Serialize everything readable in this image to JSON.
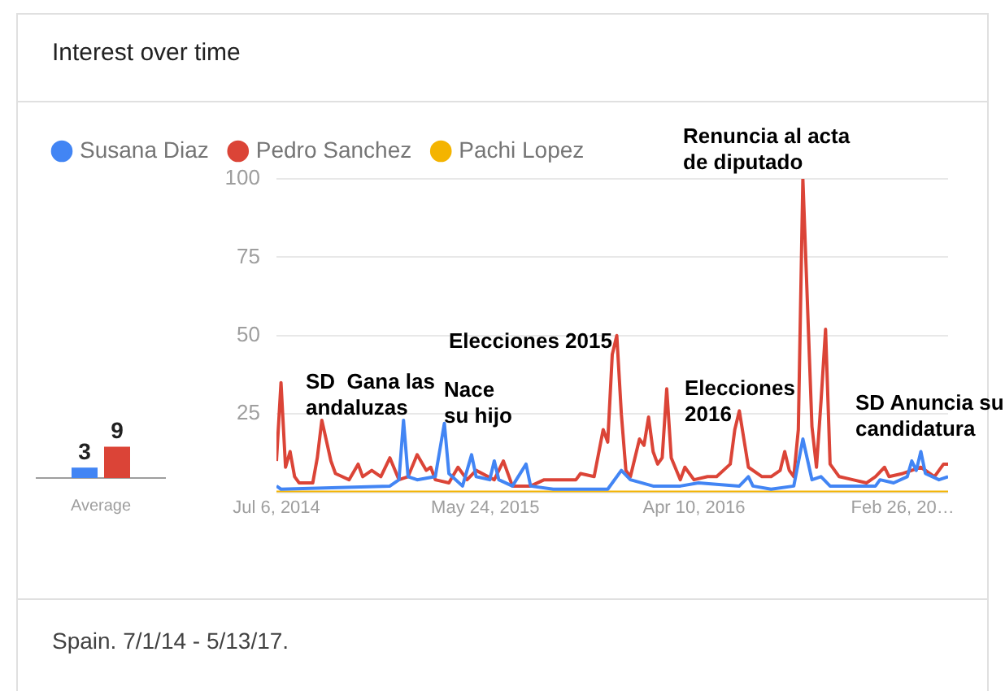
{
  "chart_data": [
    {
      "type": "bar",
      "categories": [
        "Average"
      ],
      "data_labels": true,
      "legend": false,
      "series": [
        {
          "color": "#4285f4",
          "values": [
            3
          ]
        },
        {
          "color": "#db4437",
          "values": [
            9
          ]
        }
      ]
    },
    {
      "type": "line",
      "title": "Interest over time",
      "legend": "top left",
      "grid": "y",
      "marker": "none",
      "xlim": [
        "2014-07-06",
        "2017-05-07"
      ],
      "xticks": [
        {
          "value": "2014-07-06",
          "label": "Jul 6, 2014"
        },
        {
          "value": "2015-05-24",
          "label": "May 24, 2015"
        },
        {
          "value": "2016-04-10",
          "label": "Apr 10, 2016"
        },
        {
          "value": "2017-02-26",
          "label": "Feb 26, 20…"
        }
      ],
      "ylim": [
        0,
        100
      ],
      "yticks": [
        {
          "value": 0,
          "label": null
        },
        25,
        50,
        75,
        100
      ],
      "series": [
        {
          "name": "Susana Diaz",
          "color": "#4285f4",
          "x": [
            "2014-07-06",
            "2014-07-13",
            "2014-12-28",
            "2015-01-11",
            "2015-01-18",
            "2015-01-25",
            "2015-02-08",
            "2015-03-08",
            "2015-03-22",
            "2015-03-29",
            "2015-04-19",
            "2015-05-03",
            "2015-05-10",
            "2015-05-31",
            "2015-06-07",
            "2015-06-14",
            "2015-07-05",
            "2015-07-26",
            "2015-08-02",
            "2015-09-06",
            "2015-11-29",
            "2015-12-20",
            "2016-01-03",
            "2016-02-07",
            "2016-03-20",
            "2016-04-17",
            "2016-06-19",
            "2016-07-03",
            "2016-07-10",
            "2016-08-07",
            "2016-09-11",
            "2016-09-25",
            "2016-10-09",
            "2016-10-23",
            "2016-11-06",
            "2016-12-11",
            "2017-01-15",
            "2017-01-22",
            "2017-02-12",
            "2017-03-05",
            "2017-03-12",
            "2017-03-19",
            "2017-03-26",
            "2017-04-02",
            "2017-04-23",
            "2017-05-07"
          ],
          "values": [
            2,
            1,
            2,
            4,
            23,
            5,
            4,
            5,
            22,
            6,
            2,
            12,
            5,
            4,
            10,
            4,
            2,
            9,
            2,
            1,
            1,
            7,
            4,
            2,
            2,
            3,
            2,
            5,
            2,
            1,
            2,
            17,
            4,
            5,
            2,
            2,
            2,
            4,
            3,
            5,
            10,
            7,
            13,
            6,
            4,
            5
          ]
        },
        {
          "name": "Pedro Sanchez",
          "color": "#db4437",
          "x": [
            "2014-07-06",
            "2014-07-13",
            "2014-07-20",
            "2014-07-27",
            "2014-08-03",
            "2014-08-10",
            "2014-08-31",
            "2014-09-07",
            "2014-09-14",
            "2014-09-28",
            "2014-10-05",
            "2014-10-26",
            "2014-11-09",
            "2014-11-16",
            "2014-11-30",
            "2014-12-14",
            "2014-12-28",
            "2015-01-11",
            "2015-01-25",
            "2015-02-08",
            "2015-02-22",
            "2015-03-01",
            "2015-03-08",
            "2015-03-29",
            "2015-04-12",
            "2015-04-26",
            "2015-05-10",
            "2015-06-07",
            "2015-06-21",
            "2015-07-05",
            "2015-08-02",
            "2015-08-23",
            "2015-09-13",
            "2015-10-11",
            "2015-10-18",
            "2015-11-08",
            "2015-11-22",
            "2015-11-29",
            "2015-12-06",
            "2015-12-13",
            "2015-12-20",
            "2015-12-27",
            "2016-01-03",
            "2016-01-17",
            "2016-01-24",
            "2016-01-31",
            "2016-02-07",
            "2016-02-14",
            "2016-02-21",
            "2016-02-28",
            "2016-03-06",
            "2016-03-20",
            "2016-03-27",
            "2016-04-10",
            "2016-05-01",
            "2016-05-15",
            "2016-06-05",
            "2016-06-12",
            "2016-06-19",
            "2016-06-26",
            "2016-07-03",
            "2016-07-24",
            "2016-08-07",
            "2016-08-21",
            "2016-08-28",
            "2016-09-04",
            "2016-09-11",
            "2016-09-18",
            "2016-09-25",
            "2016-10-09",
            "2016-10-16",
            "2016-10-23",
            "2016-10-30",
            "2016-11-06",
            "2016-11-20",
            "2016-12-11",
            "2017-01-01",
            "2017-01-15",
            "2017-01-29",
            "2017-02-05",
            "2017-02-26",
            "2017-03-12",
            "2017-03-26",
            "2017-04-16",
            "2017-04-30",
            "2017-05-07"
          ],
          "values": [
            10,
            35,
            8,
            13,
            5,
            3,
            3,
            11,
            23,
            10,
            6,
            4,
            9,
            5,
            7,
            5,
            11,
            4,
            5,
            12,
            7,
            8,
            4,
            3,
            8,
            4,
            7,
            4,
            10,
            2,
            2,
            4,
            4,
            4,
            6,
            5,
            20,
            16,
            44,
            50,
            25,
            7,
            5,
            17,
            15,
            24,
            13,
            9,
            11,
            33,
            11,
            4,
            8,
            4,
            5,
            5,
            9,
            20,
            26,
            17,
            8,
            5,
            5,
            7,
            13,
            7,
            5,
            20,
            100,
            21,
            8,
            29,
            52,
            9,
            5,
            4,
            3,
            5,
            8,
            5,
            6,
            7,
            8,
            5,
            9,
            9
          ]
        },
        {
          "name": "Pachi Lopez",
          "color": "#f4b400",
          "x": [
            "2014-07-06",
            "2017-05-07"
          ],
          "values": [
            0,
            0
          ]
        }
      ],
      "annotations": [
        "SD  Gana las\nandaluzas",
        "Nace\nsu hijo",
        "Elecciones 2015",
        "Renuncia al acta\nde diputado",
        "Elecciones\n2016",
        "SD Anuncia su\ncandidatura",
        "Spain. 7/1/14 - 5/13/17."
      ]
    }
  ]
}
